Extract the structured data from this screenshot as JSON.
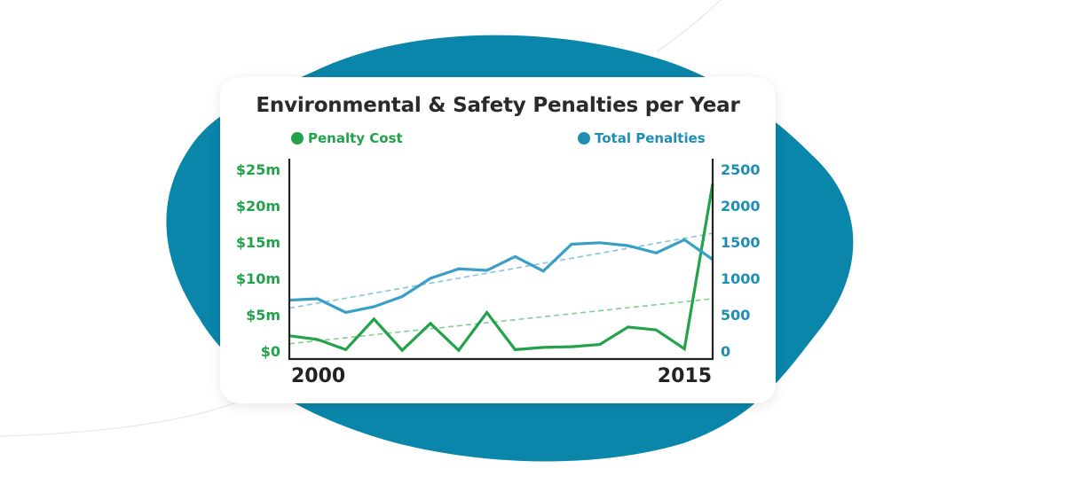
{
  "chart_data": {
    "type": "line",
    "title": "Environmental & Safety Penalties per Year",
    "x": [
      2000,
      2001,
      2002,
      2003,
      2004,
      2005,
      2006,
      2007,
      2008,
      2009,
      2010,
      2011,
      2012,
      2013,
      2014,
      2015
    ],
    "x_tick_labels": [
      "2000",
      "2015"
    ],
    "series": [
      {
        "name": "Penalty Cost",
        "axis": "left",
        "color": "#22a24a",
        "values": [
          2.1,
          1.6,
          0.2,
          4.4,
          0.1,
          3.8,
          0.1,
          5.3,
          0.2,
          0.5,
          0.6,
          0.9,
          3.3,
          2.9,
          0.3,
          23.0
        ]
      },
      {
        "name": "Total Penalties",
        "axis": "right",
        "color": "#3a9fc6",
        "values": [
          700,
          720,
          530,
          610,
          750,
          1000,
          1130,
          1110,
          1300,
          1100,
          1470,
          1490,
          1450,
          1350,
          1530,
          1260
        ]
      }
    ],
    "trendlines": [
      {
        "series": "Penalty Cost",
        "style": "dashed",
        "start": 1.0,
        "end": 7.2
      },
      {
        "series": "Total Penalties",
        "style": "dashed",
        "start": 590,
        "end": 1620
      }
    ],
    "y_left": {
      "min": 0,
      "max": 25,
      "ticks": [
        0,
        5,
        10,
        15,
        20,
        25
      ],
      "tick_labels": [
        "$0",
        "$5m",
        "$10m",
        "$15m",
        "$20m",
        "$25m"
      ]
    },
    "y_right": {
      "min": 0,
      "max": 2500,
      "ticks": [
        0,
        500,
        1000,
        1500,
        2000,
        2500
      ],
      "tick_labels": [
        "0",
        "500",
        "1000",
        "1500",
        "2000",
        "2500"
      ]
    },
    "legend_position": "top"
  },
  "colors": {
    "blob": "#0a86aa",
    "green": "#22a24a",
    "blue": "#3a9fc6",
    "blue_text": "#1f8eb3",
    "axis": "#222222"
  }
}
